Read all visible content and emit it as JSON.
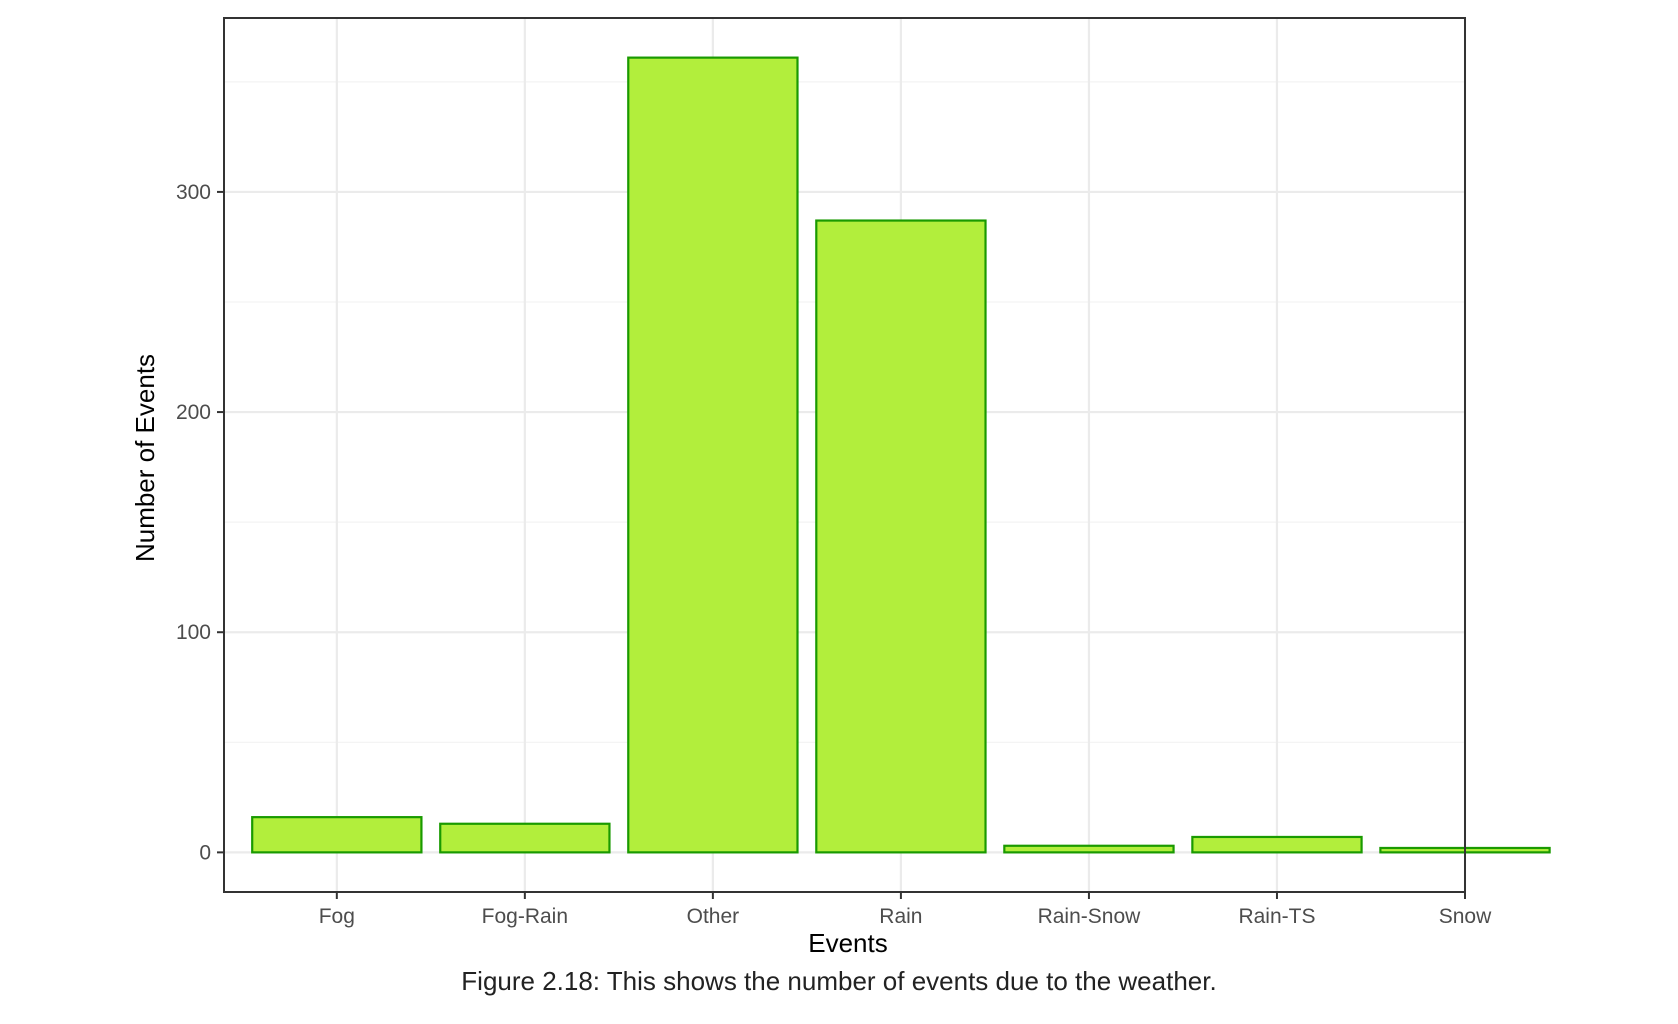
{
  "caption": "Figure 2.18: This shows the number of events due to the weather.",
  "colors": {
    "bar_fill": "#b2ee3c",
    "bar_stroke": "#1a9a00",
    "grid_major": "#ebebeb",
    "grid_minor": "#f3f3f3",
    "panel_border": "#333333",
    "tick_text": "#4d4d4d"
  },
  "chart_data": {
    "type": "bar",
    "xlabel": "Events",
    "ylabel": "Number of Events",
    "categories": [
      "Fog",
      "Fog-Rain",
      "Other",
      "Rain",
      "Rain-Snow",
      "Rain-TS",
      "Snow"
    ],
    "values": [
      16,
      13,
      361,
      287,
      3,
      7,
      2
    ],
    "ylim": [
      -18,
      379
    ],
    "yticks": [
      0,
      100,
      200,
      300
    ],
    "ytick_labels": [
      "0",
      "100",
      "200",
      "300"
    ],
    "grid": true,
    "legend": "none"
  }
}
